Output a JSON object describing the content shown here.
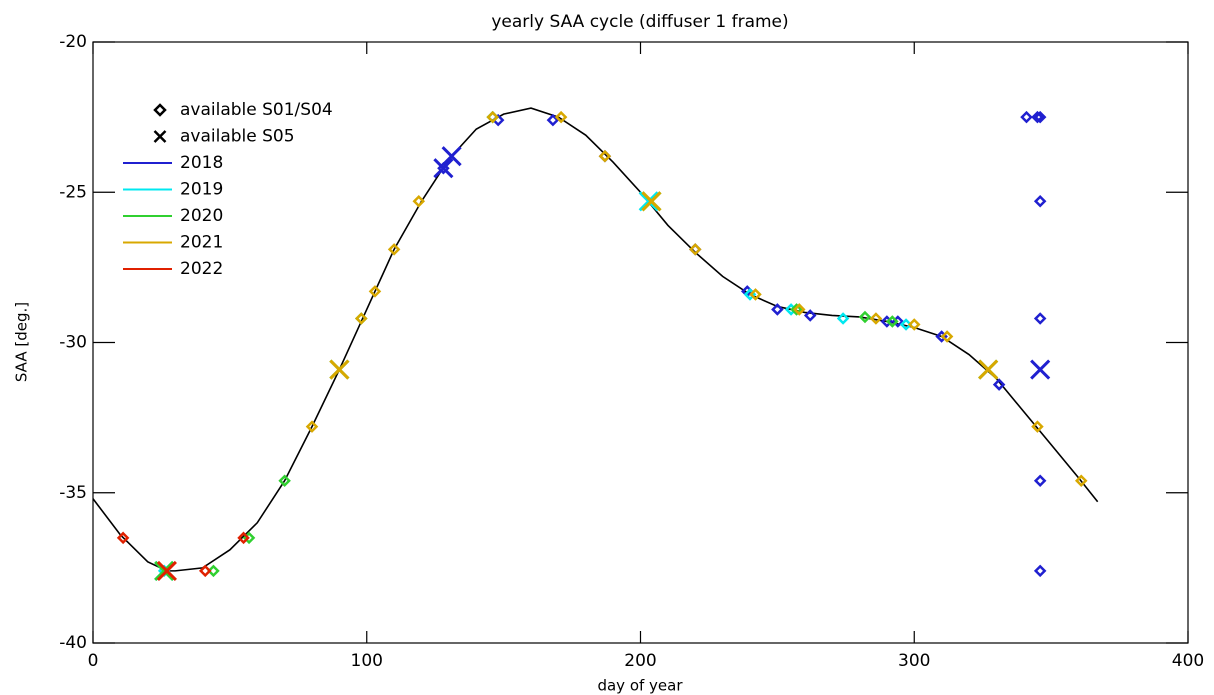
{
  "chart_data": {
    "type": "scatter",
    "title": "yearly SAA cycle (diffuser 1 frame)",
    "x_label": "day of year",
    "y_label": "SAA [deg.]",
    "xlim": [
      0,
      400
    ],
    "xticks": [
      0,
      100,
      200,
      300,
      400
    ],
    "ylim": [
      -40,
      -20
    ],
    "yticks": [
      -40,
      -35,
      -30,
      -25,
      -20
    ],
    "curve": {
      "color": "#000000",
      "x": [
        0,
        10,
        20,
        27,
        30,
        40,
        50,
        60,
        70,
        80,
        90,
        100,
        110,
        120,
        130,
        140,
        150,
        160,
        170,
        180,
        190,
        200,
        210,
        220,
        230,
        240,
        250,
        260,
        270,
        280,
        290,
        300,
        310,
        320,
        330,
        340,
        350,
        360,
        367
      ],
      "values": [
        -35.2,
        -36.4,
        -37.3,
        -37.6,
        -37.6,
        -37.5,
        -36.9,
        -36.0,
        -34.6,
        -32.8,
        -30.9,
        -28.9,
        -26.9,
        -25.3,
        -23.9,
        -22.9,
        -22.4,
        -22.2,
        -22.5,
        -23.1,
        -24.0,
        -25.0,
        -26.1,
        -27.0,
        -27.8,
        -28.4,
        -28.8,
        -29.0,
        -29.1,
        -29.15,
        -29.3,
        -29.5,
        -29.8,
        -30.4,
        -31.2,
        -32.3,
        -33.4,
        -34.5,
        -35.3
      ]
    },
    "markers": [
      {
        "label": "available S01/S04",
        "symbol": "diamond"
      },
      {
        "label": "available S05",
        "symbol": "cross"
      }
    ],
    "series": [
      {
        "name": "2018",
        "color": "#2020d0",
        "points": {
          "x": [
            128,
            148,
            168,
            187,
            220,
            239,
            250,
            262,
            290,
            294,
            310,
            331,
            341,
            345,
            346,
            346,
            346,
            346,
            346
          ],
          "values": [
            -24.2,
            -22.6,
            -22.6,
            -23.8,
            -26.9,
            -28.3,
            -28.9,
            -29.1,
            -29.3,
            -29.3,
            -29.8,
            -31.4,
            -22.5,
            -22.5,
            -22.5,
            -25.3,
            -29.2,
            -34.6,
            -37.6
          ]
        },
        "s05": {
          "x": [
            128,
            131,
            346
          ],
          "values": [
            -24.2,
            -23.8,
            -30.9
          ]
        }
      },
      {
        "name": "2019",
        "color": "#00e8f0",
        "points": {
          "x": [
            26,
            146,
            240,
            255,
            274,
            297
          ],
          "values": [
            -37.6,
            -22.5,
            -28.4,
            -28.9,
            -29.2,
            -29.4
          ]
        },
        "s05": {
          "x": [
            26,
            203
          ],
          "values": [
            -37.6,
            -25.3
          ]
        }
      },
      {
        "name": "2020",
        "color": "#30d030",
        "points": {
          "x": [
            44,
            57,
            70,
            98,
            146,
            257,
            282,
            292
          ],
          "values": [
            -37.6,
            -36.5,
            -34.6,
            -29.2,
            -22.5,
            -28.9,
            -29.15,
            -29.3
          ]
        },
        "s05": {
          "x": [
            26,
            90,
            204,
            327
          ],
          "values": [
            -37.6,
            -30.9,
            -25.3,
            -30.9
          ]
        }
      },
      {
        "name": "2021",
        "color": "#d8a800",
        "points": {
          "x": [
            80,
            98,
            103,
            110,
            119,
            146,
            171,
            187,
            220,
            242,
            258,
            286,
            300,
            312,
            345,
            361
          ],
          "values": [
            -32.8,
            -29.2,
            -28.3,
            -26.9,
            -25.3,
            -22.5,
            -22.5,
            -23.8,
            -26.9,
            -28.4,
            -28.9,
            -29.2,
            -29.4,
            -29.8,
            -32.8,
            -34.6
          ]
        },
        "s05": {
          "x": [
            90,
            204,
            327
          ],
          "values": [
            -30.9,
            -25.3,
            -30.9
          ]
        }
      },
      {
        "name": "2022",
        "color": "#e02000",
        "points": {
          "x": [
            11,
            41,
            55
          ],
          "values": [
            -36.5,
            -37.6,
            -36.5
          ]
        },
        "s05": {
          "x": [
            27
          ],
          "values": [
            -37.6
          ]
        }
      }
    ]
  }
}
